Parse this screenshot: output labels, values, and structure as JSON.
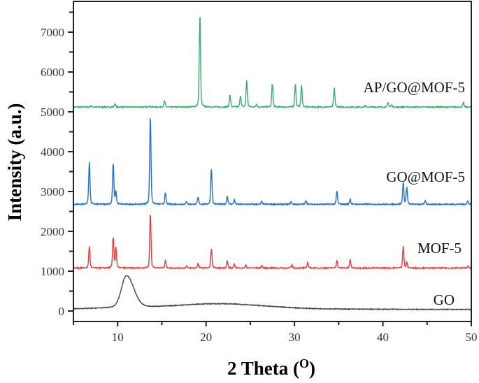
{
  "chart_data": {
    "type": "line",
    "title": "",
    "xlabel": "2 Theta (",
    "xlabel_sup": "O",
    "xlabel_close": ")",
    "ylabel": "Intensity (a.u.)",
    "xlim": [
      5,
      50
    ],
    "ylim": [
      -300,
      7800
    ],
    "xticks": [
      10,
      20,
      30,
      40,
      50
    ],
    "yticks": [
      0,
      1000,
      2000,
      3000,
      4000,
      5000,
      6000,
      7000
    ],
    "grid": false,
    "series": [
      {
        "name": "AP/GO@MOF-5",
        "color": "#3aae6a",
        "baseline": 5120,
        "peaks": [
          [
            7.0,
            5150
          ],
          [
            9.7,
            5200
          ],
          [
            13.6,
            5150
          ],
          [
            15.3,
            5280
          ],
          [
            19.3,
            7450
          ],
          [
            22.7,
            5420
          ],
          [
            23.9,
            5400
          ],
          [
            24.6,
            5790
          ],
          [
            25.7,
            5190
          ],
          [
            27.5,
            5710
          ],
          [
            30.1,
            5690
          ],
          [
            30.8,
            5660
          ],
          [
            34.5,
            5600
          ],
          [
            38.0,
            5150
          ],
          [
            40.6,
            5230
          ],
          [
            41.0,
            5170
          ],
          [
            49.1,
            5230
          ]
        ]
      },
      {
        "name": "GO@MOF-5",
        "color": "#1f6fe0",
        "baseline": 2680,
        "peaks": [
          [
            6.8,
            3750
          ],
          [
            9.5,
            3700
          ],
          [
            9.8,
            3000
          ],
          [
            13.7,
            4900
          ],
          [
            15.4,
            2960
          ],
          [
            17.8,
            2750
          ],
          [
            19.1,
            2850
          ],
          [
            20.6,
            3570
          ],
          [
            22.4,
            2880
          ],
          [
            23.2,
            2790
          ],
          [
            26.3,
            2750
          ],
          [
            29.6,
            2740
          ],
          [
            31.3,
            2780
          ],
          [
            34.8,
            3010
          ],
          [
            36.3,
            2810
          ],
          [
            42.3,
            3230
          ],
          [
            42.7,
            3100
          ],
          [
            44.8,
            2760
          ],
          [
            49.6,
            2760
          ]
        ]
      },
      {
        "name": "MOF-5",
        "color": "#f03a3a",
        "baseline": 1080,
        "peaks": [
          [
            6.8,
            1620
          ],
          [
            9.5,
            1850
          ],
          [
            9.8,
            1600
          ],
          [
            13.7,
            2450
          ],
          [
            15.4,
            1270
          ],
          [
            17.8,
            1130
          ],
          [
            19.1,
            1190
          ],
          [
            20.6,
            1550
          ],
          [
            22.4,
            1250
          ],
          [
            23.2,
            1170
          ],
          [
            24.5,
            1150
          ],
          [
            26.3,
            1150
          ],
          [
            29.7,
            1160
          ],
          [
            31.5,
            1220
          ],
          [
            34.8,
            1280
          ],
          [
            36.3,
            1290
          ],
          [
            42.3,
            1630
          ],
          [
            42.7,
            1220
          ],
          [
            49.6,
            1130
          ]
        ]
      },
      {
        "name": "GO",
        "color": "#444444",
        "baseline": 50,
        "peaks": [
          [
            11.0,
            877
          ],
          [
            21.5,
            180
          ]
        ]
      }
    ]
  }
}
